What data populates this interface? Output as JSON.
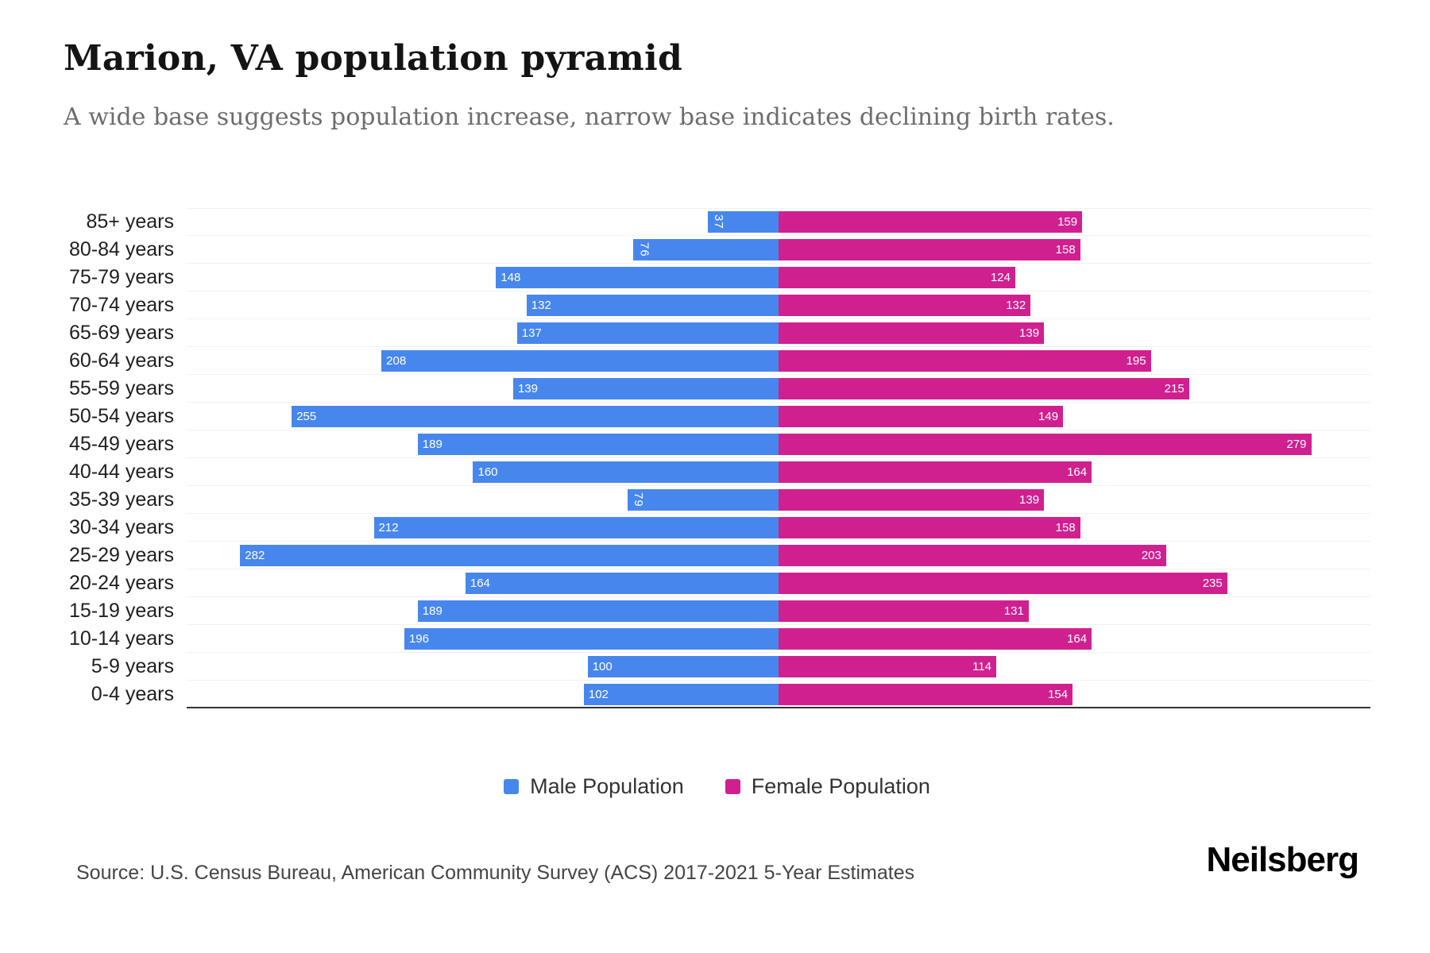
{
  "header": {
    "title": "Marion, VA population pyramid",
    "subtitle": "A wide base suggests population increase, narrow base indicates declining birth rates."
  },
  "chart_data": {
    "type": "bar",
    "subtype": "population-pyramid",
    "orientation": "horizontal",
    "categories": [
      "85+ years",
      "80-84 years",
      "75-79 years",
      "70-74 years",
      "65-69 years",
      "60-64 years",
      "55-59 years",
      "50-54 years",
      "45-49 years",
      "40-44 years",
      "35-39 years",
      "30-34 years",
      "25-29 years",
      "20-24 years",
      "15-19 years",
      "10-14 years",
      "5-9 years",
      "0-4 years"
    ],
    "series": [
      {
        "name": "Male Population",
        "side": "left",
        "color": "#4787ED",
        "values": [
          37,
          76,
          148,
          132,
          137,
          208,
          139,
          255,
          189,
          160,
          79,
          212,
          282,
          164,
          189,
          196,
          100,
          102
        ]
      },
      {
        "name": "Female Population",
        "side": "right",
        "color": "#D0208F",
        "values": [
          159,
          158,
          124,
          132,
          139,
          195,
          215,
          149,
          279,
          164,
          139,
          158,
          203,
          235,
          131,
          164,
          114,
          154
        ]
      }
    ],
    "axis_max_per_side": 310,
    "grid": true,
    "legend_position": "bottom",
    "value_labels": "inside-end-white",
    "rotated_label_threshold": 100
  },
  "legend": {
    "items": [
      {
        "label": "Male Population",
        "color": "#4787ED"
      },
      {
        "label": "Female Population",
        "color": "#D0208F"
      }
    ]
  },
  "footer": {
    "source": "Source: U.S. Census Bureau, American Community Survey (ACS) 2017-2021 5-Year Estimates",
    "brand": "Neilsberg"
  }
}
